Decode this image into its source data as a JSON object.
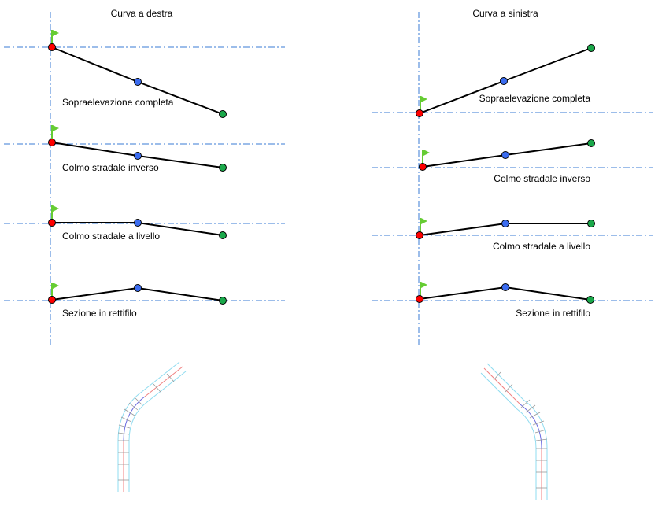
{
  "colors": {
    "axis": "#3a7bd5",
    "start_point": "#ff0000",
    "mid_point": "#3b6cf0",
    "end_point": "#1aa84a",
    "flag": "#66cc33"
  },
  "left_panel": {
    "title": "Curva a destra",
    "sections": [
      {
        "label": "Sopraelevazione completa"
      },
      {
        "label": "Colmo stradale inverso"
      },
      {
        "label": "Colmo stradale a livello"
      },
      {
        "label": "Sezione in rettifilo"
      }
    ]
  },
  "right_panel": {
    "title": "Curva a sinistra",
    "sections": [
      {
        "label": "Sopraelevazione completa"
      },
      {
        "label": "Colmo stradale inverso"
      },
      {
        "label": "Colmo stradale a livello"
      },
      {
        "label": "Sezione in rettifilo"
      }
    ]
  },
  "icons": {
    "flag": "flag-icon",
    "road_plan": "road-plan-icon"
  }
}
